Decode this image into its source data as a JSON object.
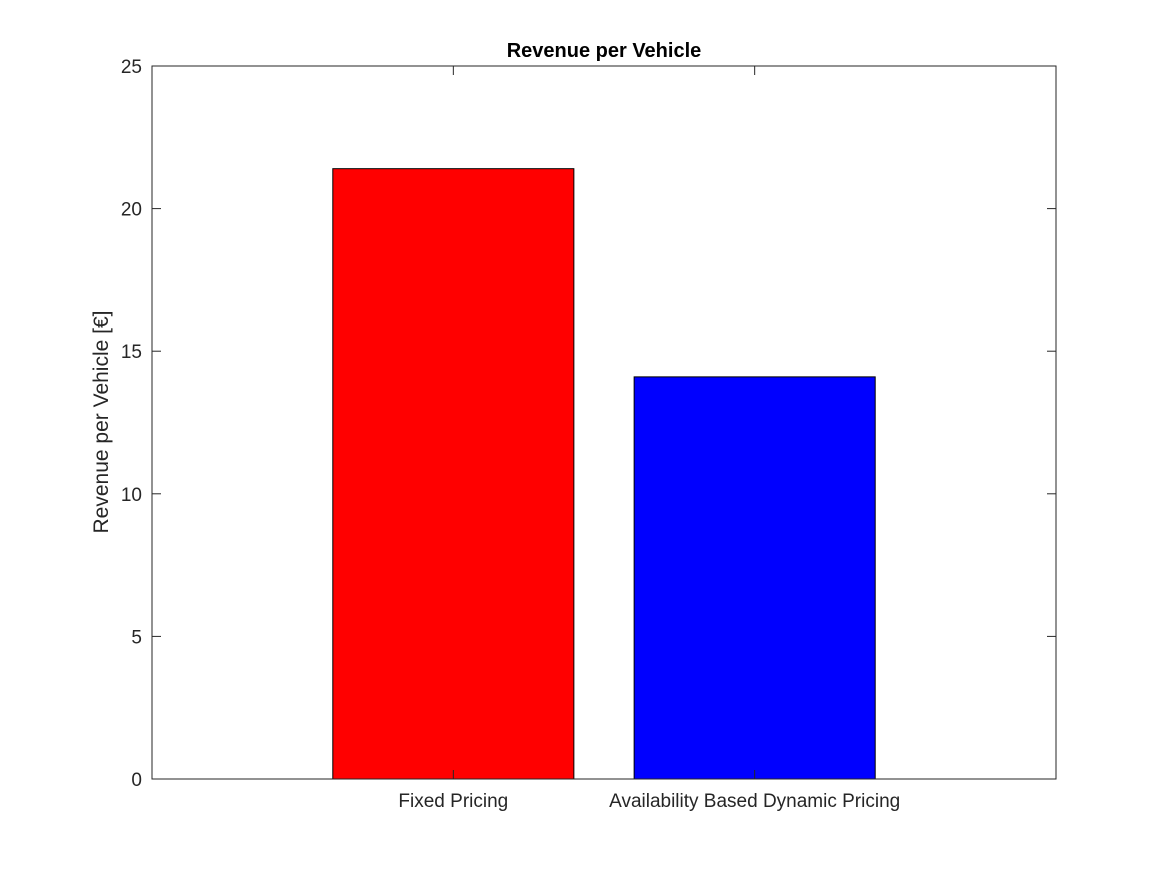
{
  "chart_data": {
    "type": "bar",
    "title": "Revenue per Vehicle",
    "xlabel": "",
    "ylabel": "Revenue per Vehicle [€]",
    "categories": [
      "Fixed Pricing",
      "Availability Based Dynamic Pricing"
    ],
    "values": [
      21.4,
      14.1
    ],
    "bar_colors": [
      "#ff0000",
      "#0000ff"
    ],
    "ylim": [
      0,
      25
    ],
    "yticks": [
      0,
      5,
      10,
      15,
      20,
      25
    ],
    "xlim": [
      0,
      3
    ],
    "grid": false,
    "legend": "none"
  }
}
